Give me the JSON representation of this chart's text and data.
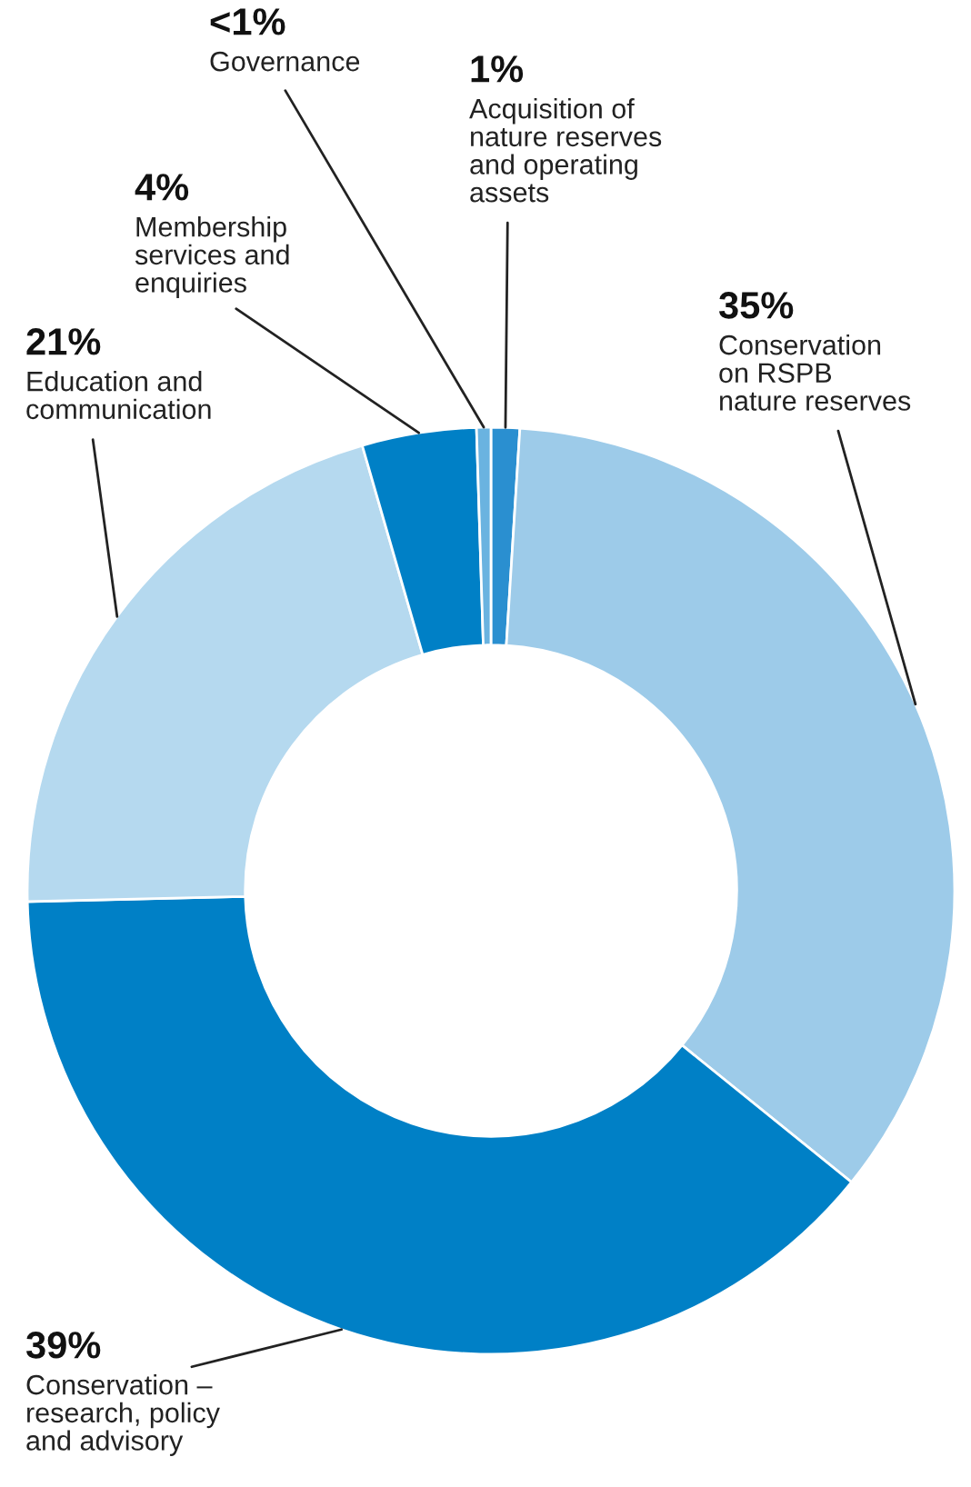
{
  "chart_data": {
    "type": "donut",
    "categories": [
      "Acquisition of\nnature reserves\nand operating\nassets",
      "Conservation\non RSPB\nnature reserves",
      "Conservation –\nresearch, policy\nand advisory",
      "Education and\ncommunication",
      "Membership\nservices and\nenquiries",
      "Governance"
    ],
    "values": [
      1,
      35,
      39,
      21,
      4,
      0.5
    ],
    "value_labels": [
      "1%",
      "35%",
      "39%",
      "21%",
      "4%",
      "<1%"
    ],
    "colors": [
      "#2a8fd0",
      "#9dcbe9",
      "#0080c6",
      "#b5d9ef",
      "#0080c6",
      "#6ab3e0"
    ]
  }
}
